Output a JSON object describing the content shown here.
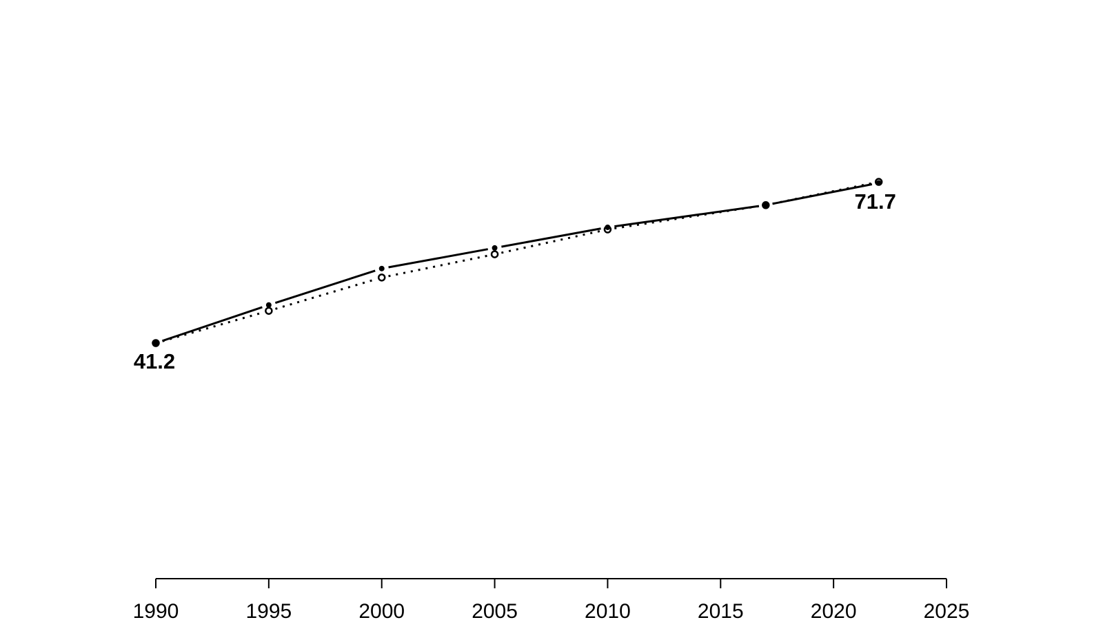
{
  "page": {
    "background": "#ffffff",
    "foreground": "#000000"
  },
  "chart_data": {
    "type": "line",
    "title": "",
    "xlabel": "",
    "ylabel": "",
    "x": [
      1990,
      1995,
      2000,
      2005,
      2010,
      2017,
      2022
    ],
    "series": [
      {
        "name": "dotted-open-circles",
        "line_style": "dotted",
        "marker": "open-circle",
        "color": "#000000",
        "values": [
          41.2,
          47.3,
          53.6,
          58.0,
          62.7,
          67.3,
          71.7
        ]
      },
      {
        "name": "solid-filled-points",
        "line_style": "solid",
        "marker": "filled-circle",
        "color": "#000000",
        "values": [
          41.2,
          48.4,
          55.3,
          59.2,
          63.1,
          67.3,
          71.5
        ]
      }
    ],
    "x_ticks": [
      "1990",
      "1995",
      "2000",
      "2005",
      "2010",
      "2015",
      "2020",
      "2025"
    ],
    "x_tick_values": [
      1990,
      1995,
      2000,
      2005,
      2010,
      2015,
      2020,
      2025
    ],
    "xlim": [
      1990,
      2025
    ],
    "ylim": [
      35.7,
      80.0
    ],
    "grid": false,
    "legend": "none",
    "y_axis_shown": false,
    "annotations": [
      {
        "text": "41.2",
        "x": 1990,
        "value": 41.2,
        "position": "below"
      },
      {
        "text": "71.7",
        "x": 2022,
        "value": 71.7,
        "position": "below"
      }
    ]
  }
}
